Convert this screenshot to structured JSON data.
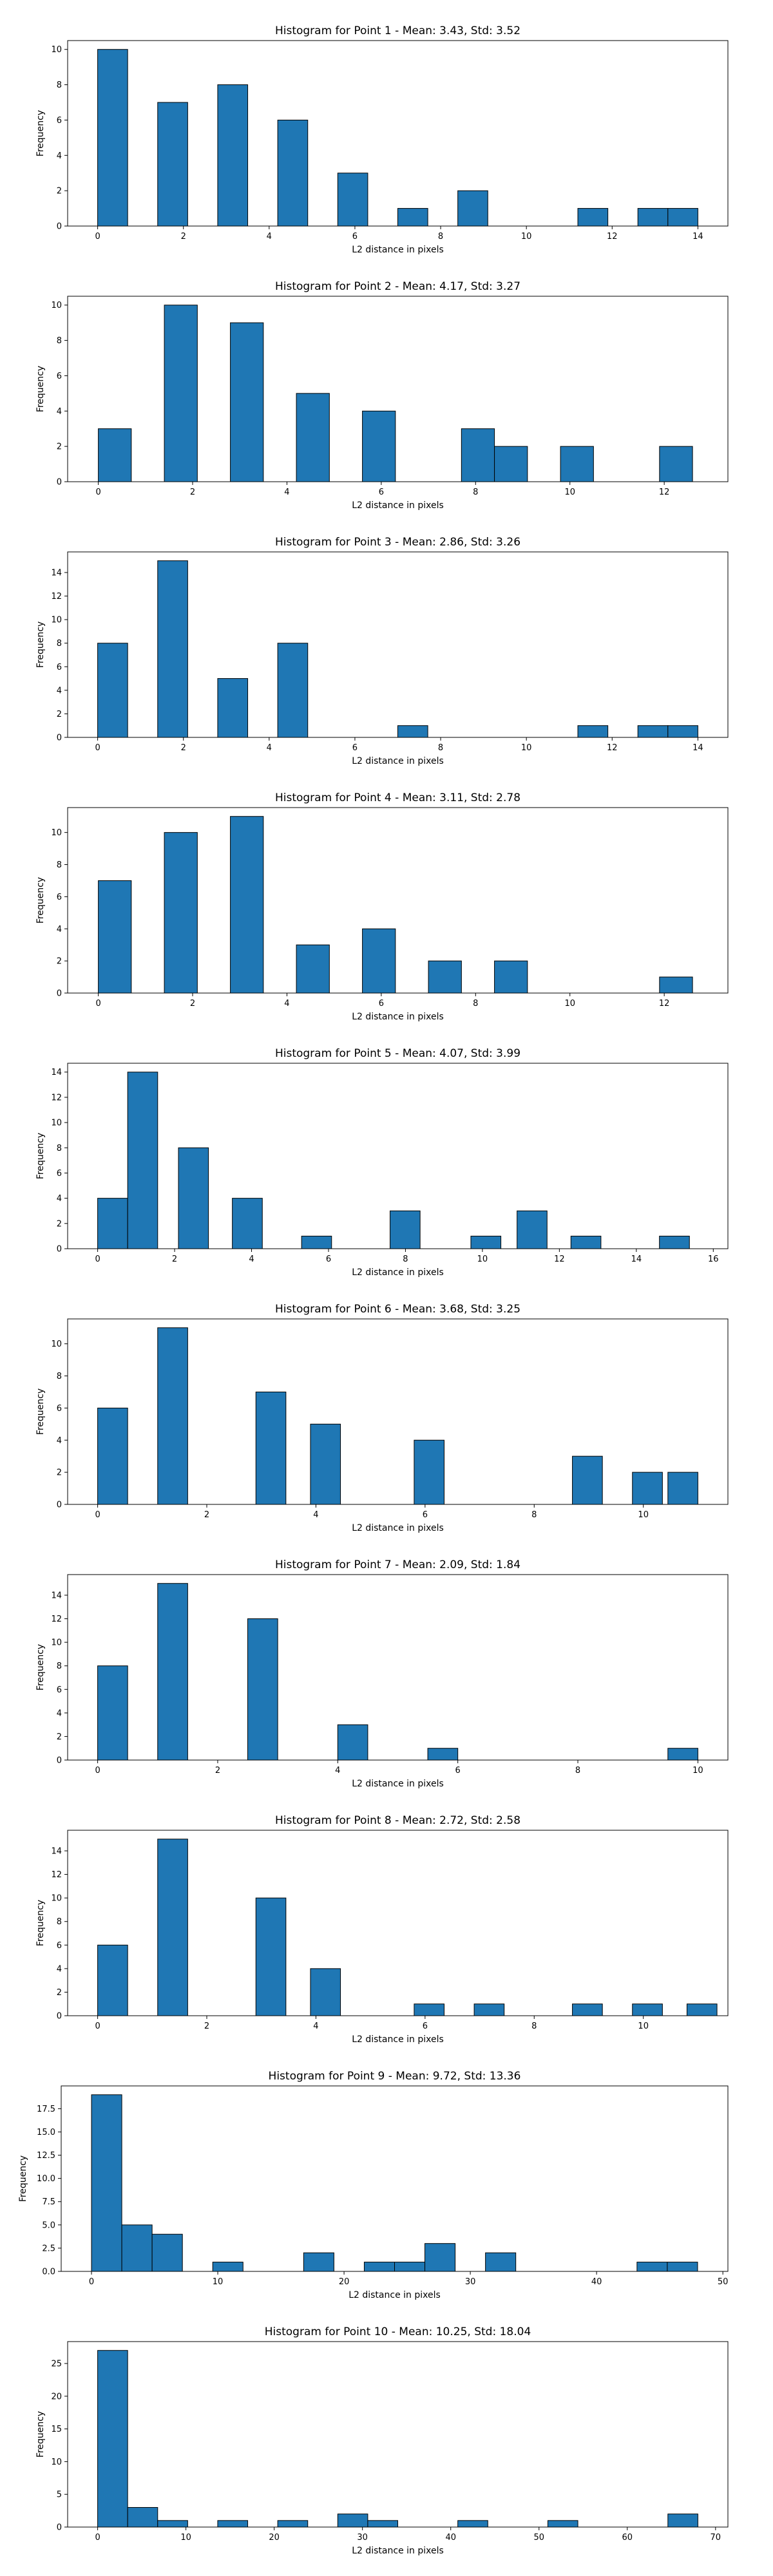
{
  "colors": {
    "bar_fill": "#1f77b4",
    "bar_edge": "#000000",
    "background": "#ffffff"
  },
  "chart_data": [
    {
      "type": "bar",
      "title": "Histogram for Point 1 - Mean: 3.43, Std: 3.52",
      "xlabel": "L2 distance in pixels",
      "ylabel": "Frequency",
      "xlim": [
        -0.7,
        14.7
      ],
      "ylim": [
        0,
        10.5
      ],
      "xticks": [
        0,
        2,
        4,
        6,
        8,
        10,
        12,
        14
      ],
      "xticklabels": [
        "0",
        "2",
        "4",
        "6",
        "8",
        "10",
        "12",
        "14"
      ],
      "yticks": [
        0,
        2,
        4,
        6,
        8,
        10
      ],
      "yticklabels": [
        "0",
        "2",
        "4",
        "6",
        "8",
        "10"
      ],
      "bins": [
        [
          0,
          0.7
        ],
        [
          1.4,
          2.1
        ],
        [
          2.8,
          3.5
        ],
        [
          4.2,
          4.9
        ],
        [
          5.6,
          6.3
        ],
        [
          7.0,
          7.7
        ],
        [
          8.4,
          9.1
        ],
        [
          11.2,
          11.9
        ],
        [
          12.6,
          13.3
        ],
        [
          13.3,
          14.0
        ]
      ],
      "values": [
        10,
        7,
        8,
        6,
        3,
        1,
        2,
        1,
        1,
        1
      ]
    },
    {
      "type": "bar",
      "title": "Histogram for Point 2 - Mean: 4.17, Std: 3.27",
      "xlabel": "L2 distance in pixels",
      "ylabel": "Frequency",
      "xlim": [
        -0.65,
        13.35
      ],
      "ylim": [
        0,
        10.5
      ],
      "xticks": [
        0,
        2,
        4,
        6,
        8,
        10,
        12
      ],
      "xticklabels": [
        "0",
        "2",
        "4",
        "6",
        "8",
        "10",
        "12"
      ],
      "yticks": [
        0,
        2,
        4,
        6,
        8,
        10
      ],
      "yticklabels": [
        "0",
        "2",
        "4",
        "6",
        "8",
        "10"
      ],
      "bins": [
        [
          0,
          0.7
        ],
        [
          1.4,
          2.1
        ],
        [
          2.8,
          3.5
        ],
        [
          4.2,
          4.9
        ],
        [
          5.6,
          6.3
        ],
        [
          7.7,
          8.4
        ],
        [
          8.4,
          9.1
        ],
        [
          9.8,
          10.5
        ],
        [
          11.9,
          12.6
        ]
      ],
      "values": [
        3,
        10,
        9,
        5,
        4,
        3,
        2,
        2,
        2
      ]
    },
    {
      "type": "bar",
      "title": "Histogram for Point 3 - Mean: 2.86, Std: 3.26",
      "xlabel": "L2 distance in pixels",
      "ylabel": "Frequency",
      "xlim": [
        -0.7,
        14.7
      ],
      "ylim": [
        0,
        15.75
      ],
      "xticks": [
        0,
        2,
        4,
        6,
        8,
        10,
        12,
        14
      ],
      "xticklabels": [
        "0",
        "2",
        "4",
        "6",
        "8",
        "10",
        "12",
        "14"
      ],
      "yticks": [
        0,
        2,
        4,
        6,
        8,
        10,
        12,
        14
      ],
      "yticklabels": [
        "0",
        "2",
        "4",
        "6",
        "8",
        "10",
        "12",
        "14"
      ],
      "bins": [
        [
          0,
          0.7
        ],
        [
          1.4,
          2.1
        ],
        [
          2.8,
          3.5
        ],
        [
          4.2,
          4.9
        ],
        [
          7.0,
          7.7
        ],
        [
          11.2,
          11.9
        ],
        [
          12.6,
          13.3
        ],
        [
          13.3,
          14.0
        ]
      ],
      "values": [
        8,
        15,
        5,
        8,
        1,
        1,
        1,
        1
      ]
    },
    {
      "type": "bar",
      "title": "Histogram for Point 4 - Mean: 3.11, Std: 2.78",
      "xlabel": "L2 distance in pixels",
      "ylabel": "Frequency",
      "xlim": [
        -0.65,
        13.35
      ],
      "ylim": [
        0,
        11.55
      ],
      "xticks": [
        0,
        2,
        4,
        6,
        8,
        10,
        12
      ],
      "xticklabels": [
        "0",
        "2",
        "4",
        "6",
        "8",
        "10",
        "12"
      ],
      "yticks": [
        0,
        2,
        4,
        6,
        8,
        10
      ],
      "yticklabels": [
        "0",
        "2",
        "4",
        "6",
        "8",
        "10"
      ],
      "bins": [
        [
          0,
          0.7
        ],
        [
          1.4,
          2.1
        ],
        [
          2.8,
          3.5
        ],
        [
          4.2,
          4.9
        ],
        [
          5.6,
          6.3
        ],
        [
          7.0,
          7.7
        ],
        [
          8.4,
          9.1
        ],
        [
          11.9,
          12.6
        ]
      ],
      "values": [
        7,
        10,
        11,
        3,
        4,
        2,
        2,
        1
      ]
    },
    {
      "type": "bar",
      "title": "Histogram for Point 5 - Mean: 4.07, Std: 3.99",
      "xlabel": "L2 distance in pixels",
      "ylabel": "Frequency",
      "xlim": [
        -0.78,
        16.38
      ],
      "ylim": [
        0,
        14.7
      ],
      "xticks": [
        0,
        2,
        4,
        6,
        8,
        10,
        12,
        14,
        16
      ],
      "xticklabels": [
        "0",
        "2",
        "4",
        "6",
        "8",
        "10",
        "12",
        "14",
        "16"
      ],
      "yticks": [
        0,
        2,
        4,
        6,
        8,
        10,
        12,
        14
      ],
      "yticklabels": [
        "0",
        "2",
        "4",
        "6",
        "8",
        "10",
        "12",
        "14"
      ],
      "bins": [
        [
          0,
          0.78
        ],
        [
          0.78,
          1.56
        ],
        [
          2.1,
          2.88
        ],
        [
          3.5,
          4.28
        ],
        [
          5.3,
          6.08
        ],
        [
          7.6,
          8.38
        ],
        [
          9.7,
          10.48
        ],
        [
          10.9,
          11.68
        ],
        [
          12.3,
          13.08
        ],
        [
          14.6,
          15.38
        ]
      ],
      "values": [
        4,
        14,
        8,
        4,
        1,
        3,
        1,
        3,
        1,
        1
      ]
    },
    {
      "type": "bar",
      "title": "Histogram for Point 6 - Mean: 3.68, Std: 3.25",
      "xlabel": "L2 distance in pixels",
      "ylabel": "Frequency",
      "xlim": [
        -0.55,
        11.55
      ],
      "ylim": [
        0,
        11.55
      ],
      "xticks": [
        0,
        2,
        4,
        6,
        8,
        10
      ],
      "xticklabels": [
        "0",
        "2",
        "4",
        "6",
        "8",
        "10"
      ],
      "yticks": [
        0,
        2,
        4,
        6,
        8,
        10
      ],
      "yticklabels": [
        "0",
        "2",
        "4",
        "6",
        "8",
        "10"
      ],
      "bins": [
        [
          0,
          0.55
        ],
        [
          1.1,
          1.65
        ],
        [
          2.9,
          3.45
        ],
        [
          3.9,
          4.45
        ],
        [
          5.8,
          6.35
        ],
        [
          8.7,
          9.25
        ],
        [
          9.8,
          10.35
        ],
        [
          10.45,
          11.0
        ]
      ],
      "values": [
        6,
        11,
        7,
        5,
        4,
        3,
        2,
        2
      ]
    },
    {
      "type": "bar",
      "title": "Histogram for Point 7 - Mean: 2.09, Std: 1.84",
      "xlabel": "L2 distance in pixels",
      "ylabel": "Frequency",
      "xlim": [
        -0.5,
        10.5
      ],
      "ylim": [
        0,
        15.75
      ],
      "xticks": [
        0,
        2,
        4,
        6,
        8,
        10
      ],
      "xticklabels": [
        "0",
        "2",
        "4",
        "6",
        "8",
        "10"
      ],
      "yticks": [
        0,
        2,
        4,
        6,
        8,
        10,
        12,
        14
      ],
      "yticklabels": [
        "0",
        "2",
        "4",
        "6",
        "8",
        "10",
        "12",
        "14"
      ],
      "bins": [
        [
          0,
          0.5
        ],
        [
          1.0,
          1.5
        ],
        [
          2.5,
          3.0
        ],
        [
          4.0,
          4.5
        ],
        [
          5.5,
          6.0
        ],
        [
          9.5,
          10.0
        ]
      ],
      "values": [
        8,
        15,
        12,
        3,
        1,
        1
      ]
    },
    {
      "type": "bar",
      "title": "Histogram for Point 8 - Mean: 2.72, Std: 2.58",
      "xlabel": "L2 distance in pixels",
      "ylabel": "Frequency",
      "xlim": [
        -0.55,
        11.55
      ],
      "ylim": [
        0,
        15.75
      ],
      "xticks": [
        0,
        2,
        4,
        6,
        8,
        10
      ],
      "xticklabels": [
        "0",
        "2",
        "4",
        "6",
        "8",
        "10"
      ],
      "yticks": [
        0,
        2,
        4,
        6,
        8,
        10,
        12,
        14
      ],
      "yticklabels": [
        "0",
        "2",
        "4",
        "6",
        "8",
        "10",
        "12",
        "14"
      ],
      "bins": [
        [
          0,
          0.55
        ],
        [
          1.1,
          1.65
        ],
        [
          2.9,
          3.45
        ],
        [
          3.9,
          4.45
        ],
        [
          5.8,
          6.35
        ],
        [
          6.9,
          7.45
        ],
        [
          8.7,
          9.25
        ],
        [
          9.8,
          10.35
        ],
        [
          10.8,
          11.35
        ]
      ],
      "values": [
        6,
        15,
        10,
        4,
        1,
        1,
        1,
        1,
        1
      ]
    },
    {
      "type": "bar",
      "title": "Histogram for Point 9 - Mean: 9.72, Std: 13.36",
      "xlabel": "L2 distance in pixels",
      "ylabel": "Frequency",
      "xlim": [
        -2.4,
        50.4
      ],
      "ylim": [
        0,
        19.95
      ],
      "xticks": [
        0,
        10,
        20,
        30,
        40,
        50
      ],
      "xticklabels": [
        "0",
        "10",
        "20",
        "30",
        "40",
        "50"
      ],
      "yticks": [
        0,
        2.5,
        5,
        7.5,
        10,
        12.5,
        15,
        17.5
      ],
      "yticklabels": [
        "0.0",
        "2.5",
        "5.0",
        "7.5",
        "10.0",
        "12.5",
        "15.0",
        "17.5"
      ],
      "bins": [
        [
          0,
          2.4
        ],
        [
          2.4,
          4.8
        ],
        [
          4.8,
          7.2
        ],
        [
          9.6,
          12.0
        ],
        [
          16.8,
          19.2
        ],
        [
          21.6,
          24.0
        ],
        [
          24.0,
          26.4
        ],
        [
          26.4,
          28.8
        ],
        [
          31.2,
          33.6
        ],
        [
          43.2,
          45.6
        ],
        [
          45.6,
          48.0
        ]
      ],
      "values": [
        19,
        5,
        4,
        1,
        2,
        1,
        1,
        3,
        2,
        1,
        1
      ]
    },
    {
      "type": "bar",
      "title": "Histogram for Point 10 - Mean: 10.25, Std: 18.04",
      "xlabel": "L2 distance in pixels",
      "ylabel": "Frequency",
      "xlim": [
        -3.4,
        71.4
      ],
      "ylim": [
        0,
        28.35
      ],
      "xticks": [
        0,
        10,
        20,
        30,
        40,
        50,
        60,
        70
      ],
      "xticklabels": [
        "0",
        "10",
        "20",
        "30",
        "40",
        "50",
        "60",
        "70"
      ],
      "yticks": [
        0,
        5,
        10,
        15,
        20,
        25
      ],
      "yticklabels": [
        "0",
        "5",
        "10",
        "15",
        "20",
        "25"
      ],
      "bins": [
        [
          0,
          3.4
        ],
        [
          3.4,
          6.8
        ],
        [
          6.8,
          10.2
        ],
        [
          13.6,
          17.0
        ],
        [
          20.4,
          23.8
        ],
        [
          27.2,
          30.6
        ],
        [
          30.6,
          34.0
        ],
        [
          40.8,
          44.2
        ],
        [
          51.0,
          54.4
        ],
        [
          64.6,
          68.0
        ]
      ],
      "values": [
        27,
        3,
        1,
        1,
        1,
        2,
        1,
        1,
        1,
        2
      ]
    }
  ]
}
